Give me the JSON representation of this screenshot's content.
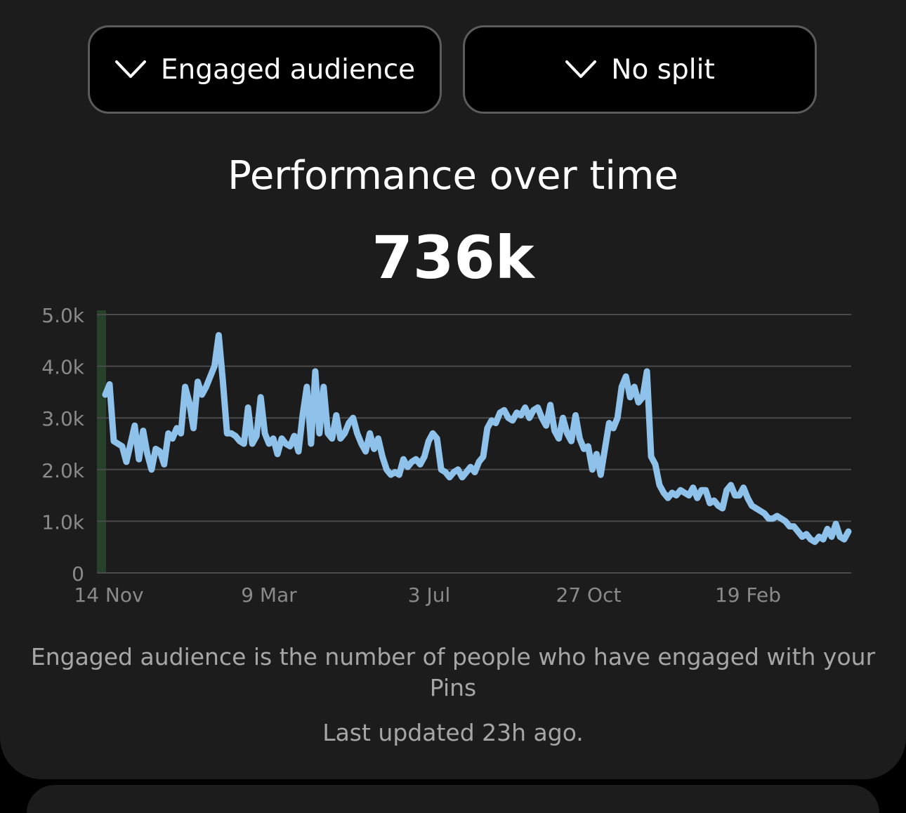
{
  "filters": {
    "metric_label": "Engaged audience",
    "metric_icon": "chevron-down-icon",
    "split_label": "No split",
    "split_icon": "chevron-down-icon"
  },
  "header": {
    "title": "Performance over time",
    "total": "736k"
  },
  "chart_data": {
    "type": "line",
    "title": "",
    "xlabel": "",
    "ylabel": "",
    "ylim": [
      0,
      5000
    ],
    "ytick_labels": [
      "0",
      "1.0k",
      "2.0k",
      "3.0k",
      "4.0k",
      "5.0k"
    ],
    "xtick_labels": [
      "14 Nov",
      "9 Mar",
      "3 Jul",
      "27 Oct",
      "19 Feb"
    ],
    "grid": true,
    "colors": {
      "line": "#8ec2ea",
      "grid": "#4a4a4a",
      "highlight": "#27402a"
    },
    "series": [
      {
        "values": [
          3450,
          3650,
          2550,
          2500,
          2450,
          2150,
          2500,
          2850,
          2200,
          2750,
          2300,
          2000,
          2400,
          2350,
          2100,
          2700,
          2600,
          2800,
          2700,
          3600,
          3300,
          2800,
          3700,
          3450,
          3600,
          3800,
          4000,
          4600,
          3700,
          2700,
          2700,
          2650,
          2550,
          2500,
          3200,
          2500,
          2650,
          3400,
          2700,
          2500,
          2600,
          2300,
          2600,
          2500,
          2450,
          2650,
          2350,
          3050,
          3600,
          2500,
          3900,
          2700,
          3600,
          2700,
          2600,
          3050,
          2600,
          2700,
          2900,
          3000,
          2700,
          2500,
          2350,
          2700,
          2400,
          2600,
          2250,
          2000,
          1900,
          1950,
          1900,
          2200,
          2050,
          2150,
          2200,
          2100,
          2250,
          2550,
          2700,
          2600,
          2000,
          1950,
          1850,
          1950,
          2000,
          1850,
          1950,
          2050,
          1950,
          2150,
          2250,
          2800,
          2950,
          2900,
          3100,
          3150,
          3000,
          2950,
          3100,
          3050,
          3200,
          3000,
          3150,
          3200,
          3000,
          2850,
          3250,
          2750,
          2600,
          3000,
          2700,
          2550,
          3050,
          2600,
          2400,
          2450,
          2000,
          2300,
          1900,
          2400,
          2900,
          2800,
          3000,
          3600,
          3800,
          3400,
          3600,
          3300,
          3400,
          3900,
          2250,
          2100,
          1700,
          1550,
          1450,
          1550,
          1500,
          1600,
          1550,
          1500,
          1650,
          1450,
          1600,
          1600,
          1350,
          1400,
          1300,
          1250,
          1600,
          1700,
          1500,
          1500,
          1650,
          1450,
          1300,
          1250,
          1200,
          1150,
          1050,
          1050,
          1100,
          1050,
          1000,
          900,
          900,
          800,
          700,
          750,
          650,
          600,
          700,
          650,
          850,
          700,
          950,
          700,
          650,
          800
        ]
      }
    ]
  },
  "footer": {
    "description": "Engaged audience is the number of people who have engaged with your Pins",
    "updated": "Last updated 23h ago."
  }
}
